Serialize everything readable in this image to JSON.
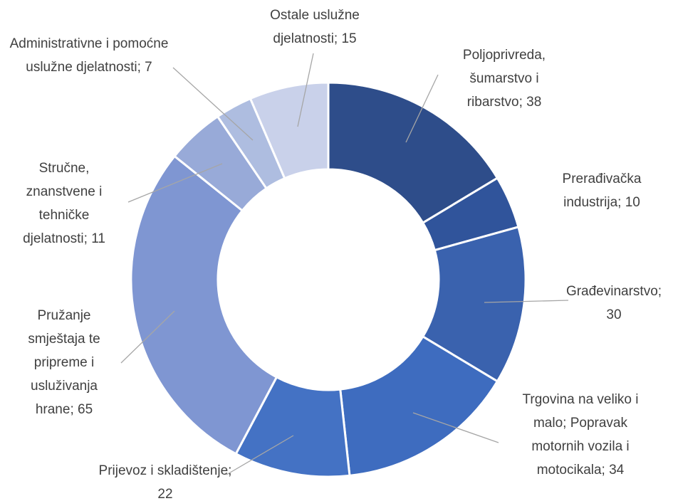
{
  "chart_data": {
    "type": "pie",
    "donut": true,
    "values": [
      38,
      10,
      30,
      34,
      22,
      65,
      11,
      7,
      15
    ],
    "value_labels": [
      "Poljoprivreda, šumarstvo i ribarstvo; 38",
      "Prerađivačka industrija; 10",
      "Građevinarstvo; 30",
      "Trgovina na veliko i malo; Popravak motornih vozila i motocikala; 34",
      "Prijevoz i skladištenje; 22",
      "Pružanje smještaja te pripreme i usluživanja hrane; 65",
      "Stručne, znanstvene i tehničke djelatnosti; 11",
      "Administrativne i pomoćne uslužne djelatnosti; 7",
      "Ostale uslužne djelatnosti; 15"
    ],
    "colors": [
      "#2e4d8a",
      "#30549b",
      "#3a62ae",
      "#3e6cbf",
      "#4472c4",
      "#7f96d2",
      "#98aad8",
      "#aebde0",
      "#c9d1ea"
    ]
  }
}
